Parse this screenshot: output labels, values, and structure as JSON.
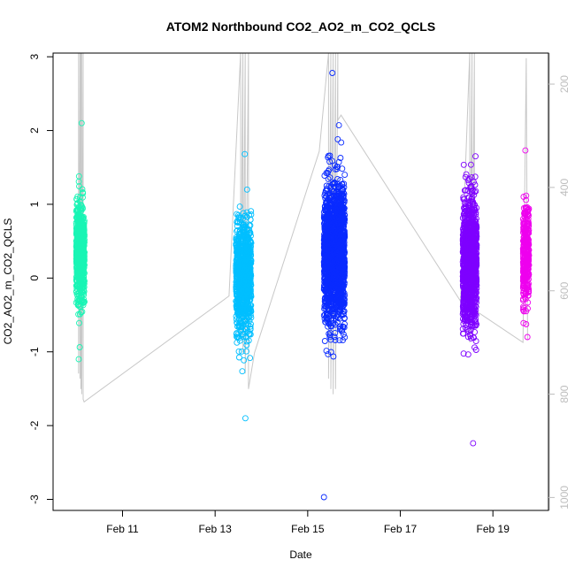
{
  "chart_data": {
    "type": "scatter",
    "title": "ATOM2 Northbound CO2_AO2_m_CO2_QCLS",
    "xlabel": "Date",
    "ylabel": "CO2_AO2_m_CO2_QCLS",
    "x_ticks": [
      "Feb 11",
      "Feb 13",
      "Feb 15",
      "Feb 17",
      "Feb 19"
    ],
    "x_tick_days": [
      11,
      13,
      15,
      17,
      19
    ],
    "xlim_days": [
      9.5,
      20.2
    ],
    "ylim": [
      -3.15,
      3.05
    ],
    "y_ticks": [
      -3,
      -2,
      -1,
      0,
      1,
      2,
      3
    ],
    "y2_ticks": [
      200,
      400,
      600,
      800,
      1000
    ],
    "y2lim": [
      1025,
      140
    ],
    "grid": false,
    "legend": "none",
    "clusters": [
      {
        "day_range": [
          10.0,
          10.18
        ],
        "color": "#19F5B5",
        "count": 700,
        "center": 0.35,
        "spread": 0.32,
        "min": -1.1,
        "max": 2.1
      },
      {
        "day_range": [
          13.45,
          13.78
        ],
        "color": "#00BFFF",
        "count": 900,
        "center": 0.0,
        "spread": 0.38,
        "min": -1.9,
        "max": 1.68
      },
      {
        "day_range": [
          15.35,
          15.8
        ],
        "color": "#0A2BFF",
        "count": 1700,
        "center": 0.35,
        "spread": 0.45,
        "min": -2.97,
        "max": 2.78
      },
      {
        "day_range": [
          18.35,
          18.65
        ],
        "color": "#7E00FF",
        "count": 1100,
        "center": 0.2,
        "spread": 0.42,
        "min": -2.24,
        "max": 1.65
      },
      {
        "day_range": [
          19.65,
          19.78
        ],
        "color": "#EE00EE",
        "count": 350,
        "center": 0.3,
        "spread": 0.33,
        "min": -0.8,
        "max": 1.73
      }
    ],
    "altitude_track": [
      [
        10.05,
        140
      ],
      [
        10.05,
        760
      ],
      [
        10.08,
        140
      ],
      [
        10.08,
        770
      ],
      [
        10.1,
        140
      ],
      [
        10.1,
        790
      ],
      [
        10.12,
        140
      ],
      [
        10.12,
        800
      ],
      [
        10.15,
        140
      ],
      [
        10.15,
        810
      ],
      [
        10.17,
        815
      ],
      [
        13.3,
        610
      ],
      [
        13.55,
        140
      ],
      [
        13.55,
        690
      ],
      [
        13.6,
        140
      ],
      [
        13.6,
        720
      ],
      [
        13.65,
        140
      ],
      [
        13.65,
        760
      ],
      [
        13.72,
        140
      ],
      [
        13.72,
        790
      ],
      [
        13.85,
        720
      ],
      [
        15.25,
        330
      ],
      [
        15.45,
        140
      ],
      [
        15.45,
        770
      ],
      [
        15.5,
        140
      ],
      [
        15.5,
        790
      ],
      [
        15.55,
        140
      ],
      [
        15.55,
        800
      ],
      [
        15.6,
        140
      ],
      [
        15.6,
        790
      ],
      [
        15.65,
        140
      ],
      [
        15.65,
        270
      ],
      [
        15.72,
        260
      ],
      [
        18.3,
        620
      ],
      [
        18.5,
        140
      ],
      [
        18.5,
        700
      ],
      [
        18.55,
        140
      ],
      [
        18.55,
        660
      ],
      [
        18.6,
        140
      ],
      [
        18.6,
        620
      ],
      [
        18.65,
        640
      ],
      [
        19.65,
        700
      ],
      [
        19.72,
        150
      ],
      [
        19.75,
        695
      ]
    ]
  }
}
